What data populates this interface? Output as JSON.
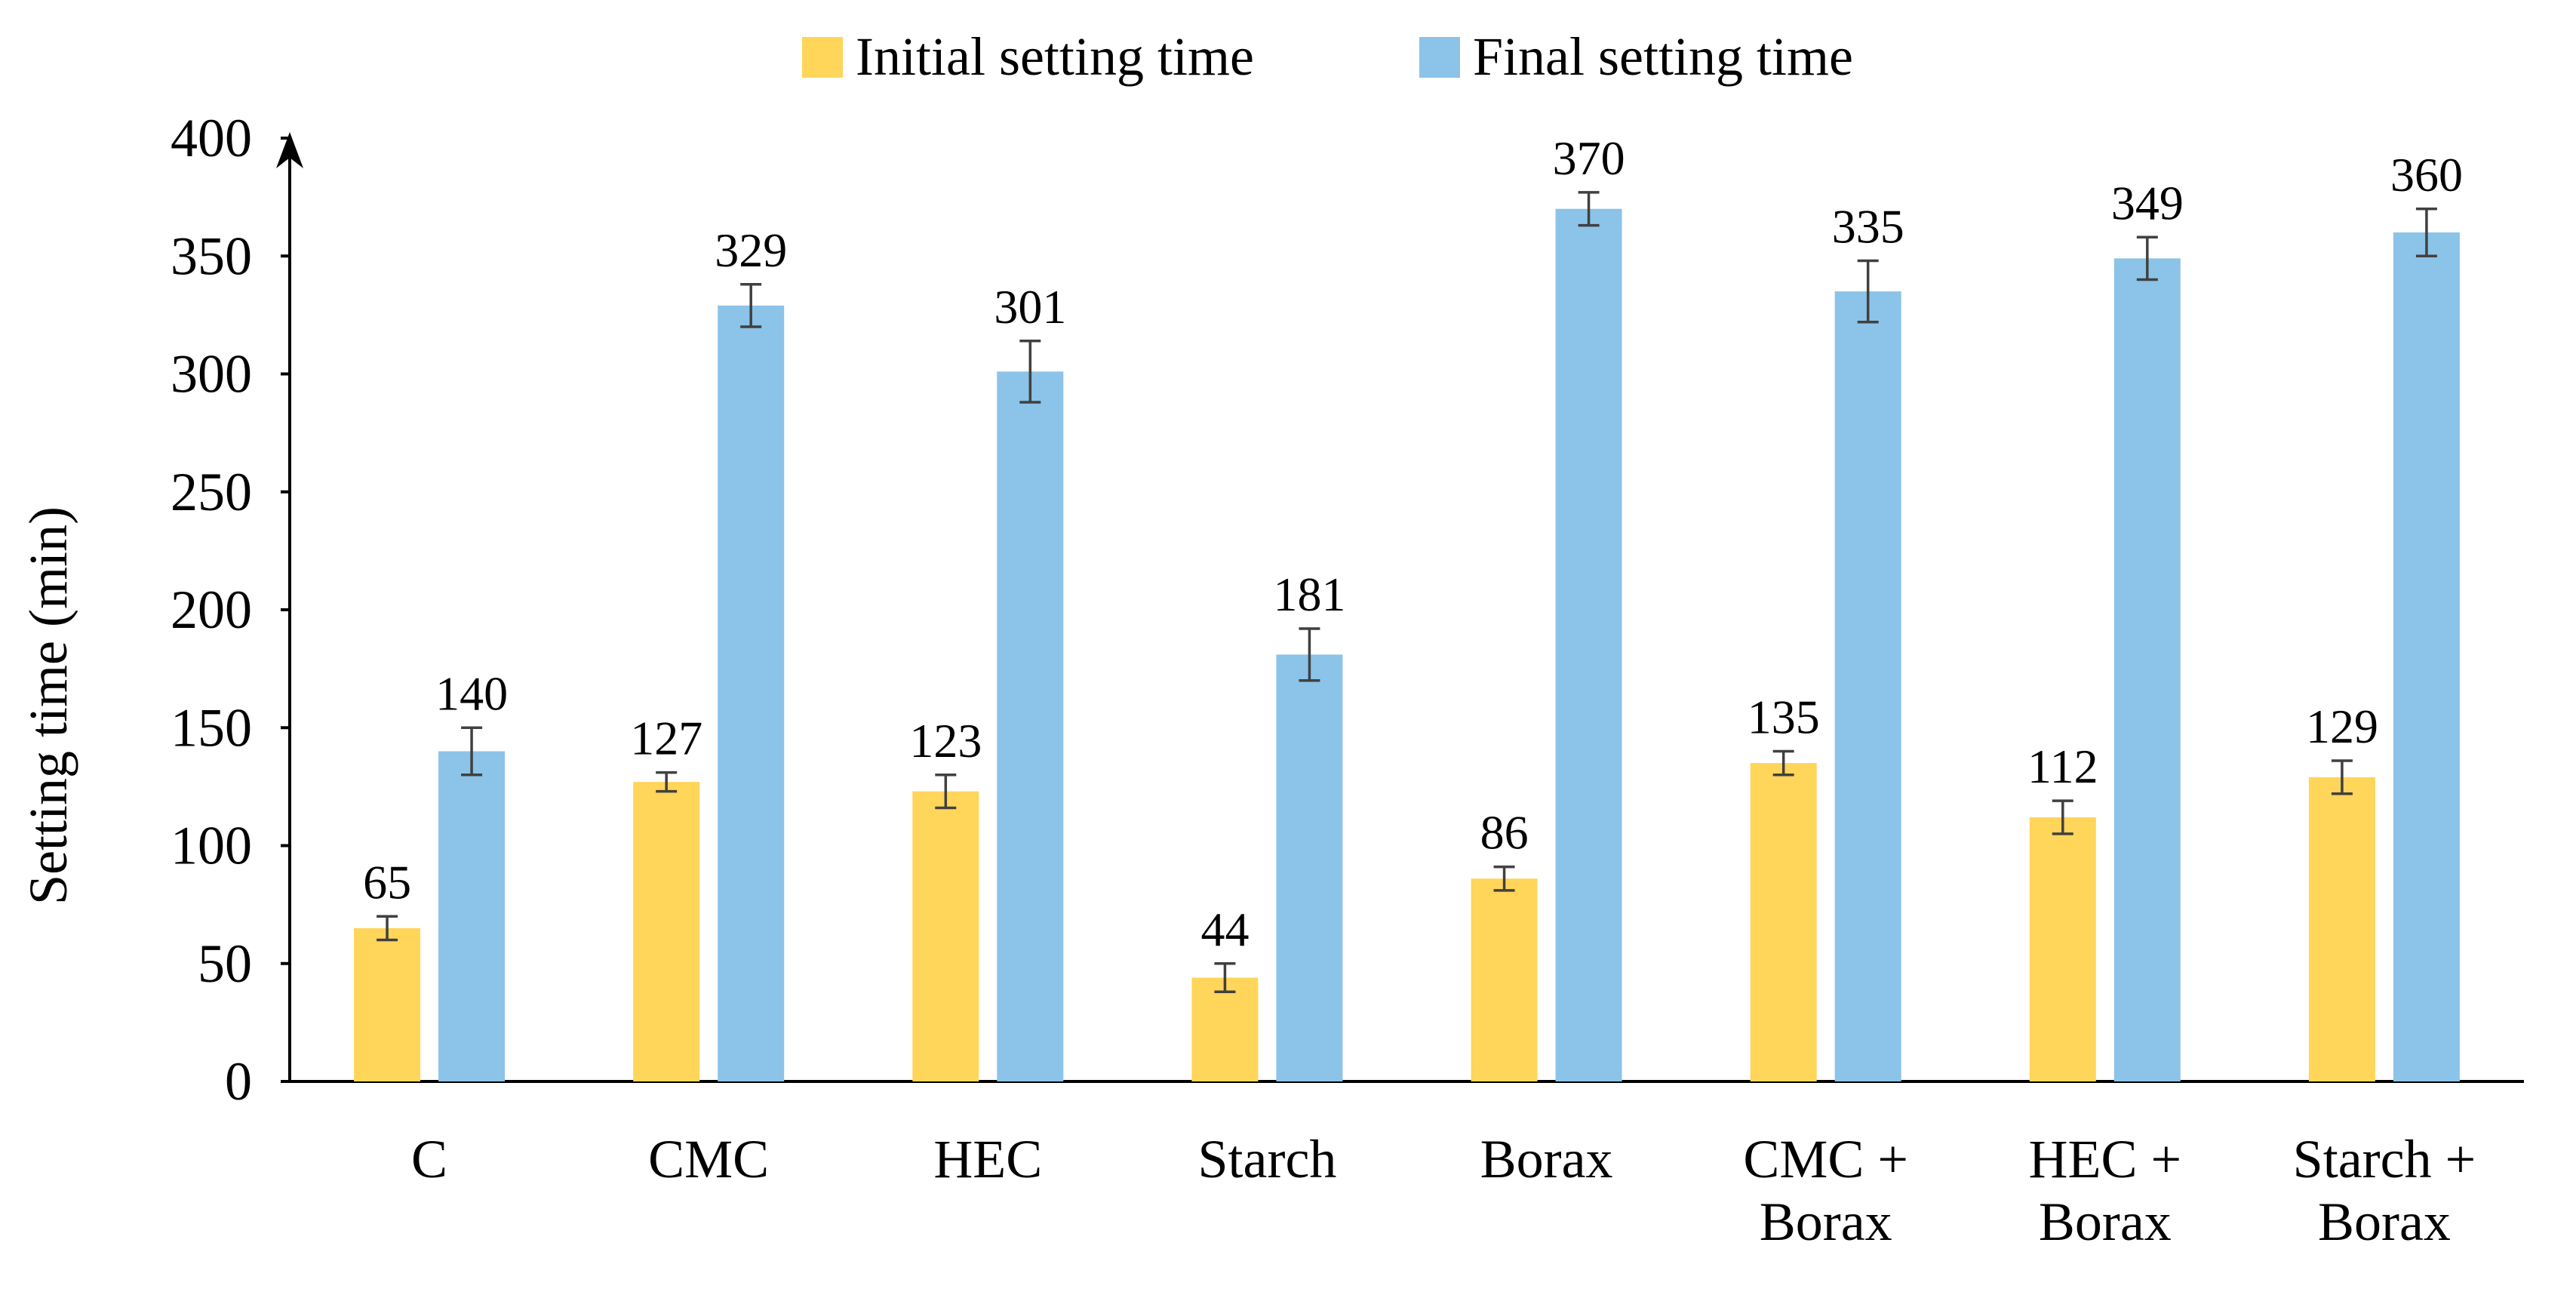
{
  "chart_data": {
    "type": "bar",
    "title": "",
    "xlabel": "",
    "ylabel": "Setting time (min)",
    "ylim": [
      0,
      400
    ],
    "yticks": [
      0,
      50,
      100,
      150,
      200,
      250,
      300,
      350,
      400
    ],
    "grid": false,
    "legend_position": "top-center",
    "categories": [
      [
        "C"
      ],
      [
        "CMC"
      ],
      [
        "HEC"
      ],
      [
        "Starch"
      ],
      [
        "Borax"
      ],
      [
        "CMC +",
        "Borax"
      ],
      [
        "HEC +",
        "Borax"
      ],
      [
        "Starch +",
        "Borax"
      ]
    ],
    "series": [
      {
        "name": "Initial setting time",
        "color": "#FFD55A",
        "values": [
          65,
          127,
          123,
          44,
          86,
          135,
          112,
          129
        ],
        "errors": [
          5,
          4,
          7,
          6,
          5,
          5,
          7,
          7
        ]
      },
      {
        "name": "Final setting time",
        "color": "#8CC3E8",
        "values": [
          140,
          329,
          301,
          181,
          370,
          335,
          349,
          360
        ],
        "errors": [
          10,
          9,
          13,
          11,
          7,
          13,
          9,
          10
        ]
      }
    ]
  }
}
